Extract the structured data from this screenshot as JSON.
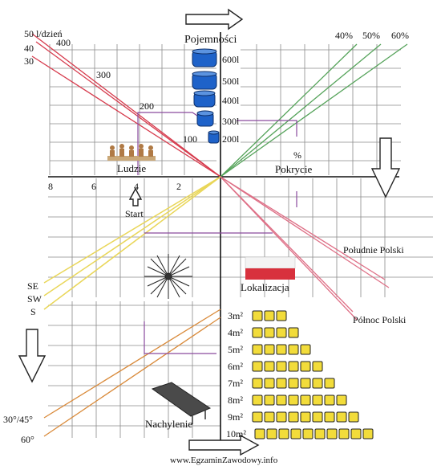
{
  "top_left": {
    "scale_50": "50 l/dzień",
    "scale_40": "40",
    "scale_30": "30"
  },
  "consumption_labels": [
    "400",
    "300",
    "200",
    "100"
  ],
  "people_axis_ticks": [
    "8",
    "6",
    "4",
    "2"
  ],
  "people": {
    "label": "Ludzie"
  },
  "start": {
    "label": "Start"
  },
  "capacity": {
    "title": "Pojemności",
    "tanks": [
      "600l",
      "500l",
      "400l",
      "300l",
      "200l"
    ]
  },
  "coverage": {
    "percents": [
      "40%",
      "50%",
      "60%"
    ],
    "symbol": "%",
    "label": "Pokrycie"
  },
  "location": {
    "label": "Lokalizacja",
    "south": "Południe Polski",
    "north": "Północ Polski",
    "orientations": [
      "SE",
      "SW",
      "S"
    ]
  },
  "tilt": {
    "label": "Nachylenie",
    "angles": [
      "30°/45°",
      "60°"
    ]
  },
  "collector_area": {
    "rows": [
      {
        "label": "3m²",
        "boxes": 3
      },
      {
        "label": "4m²",
        "boxes": 4
      },
      {
        "label": "5m²",
        "boxes": 5
      },
      {
        "label": "6m²",
        "boxes": 6
      },
      {
        "label": "7m²",
        "boxes": 7
      },
      {
        "label": "8m²",
        "boxes": 8
      },
      {
        "label": "9m²",
        "boxes": 9
      },
      {
        "label": "10m²",
        "boxes": 10
      }
    ]
  },
  "watermark": "www.EgzaminZawodowy.info",
  "colors": {
    "red": "#d63a4c",
    "pink": "#de6f86",
    "green": "#55a35a",
    "yellow": "#e9d658",
    "orange": "#d98a3a",
    "tank_blue": "#1e62c9",
    "purple": "#8a4a9e",
    "box_yellow": "#f2dc3a"
  }
}
